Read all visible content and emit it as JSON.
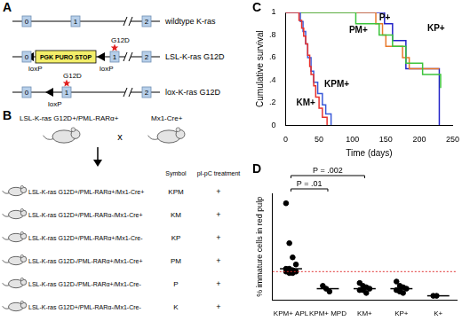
{
  "panels": {
    "A": {
      "label": "A",
      "rows": [
        {
          "name": "wildtype K-ras",
          "exons": [
            "0",
            "1",
            "2"
          ]
        },
        {
          "name": "LSL-K-ras G12D",
          "exons": [
            "0",
            "1",
            "2"
          ],
          "cassette": "PGK PURO STOP",
          "lox": [
            "loxP",
            "loxP"
          ],
          "mutation": "G12D"
        },
        {
          "name": "lox-K-ras G12D",
          "exons": [
            "0",
            "1",
            "2"
          ],
          "lox": [
            "loxP"
          ],
          "mutation": "G12D"
        }
      ]
    },
    "B": {
      "label": "B",
      "parents": [
        "LSL-K-ras G12D+/PML-RARα+",
        "Mx1-Cre+"
      ],
      "cross": "x",
      "headers": [
        "Symbol",
        "pI-pC treatment"
      ],
      "rows": [
        [
          "LSL-K-ras G12D+/PML-RARα+/Mx1-Cre+",
          "KPM",
          "+"
        ],
        [
          "LSL-K-ras G12D+/PML-RARα-/Mx1-Cre+",
          "KM",
          "+"
        ],
        [
          "LSL-K-ras G12D+/PML-RARα+/Mx1-Cre-",
          "KP",
          "+"
        ],
        [
          "LSL-K-ras G12D-/PML-RARα+/Mx1-Cre+",
          "PM",
          "+"
        ],
        [
          "LSL-K-ras G12D-/PML-RARα+/Mx1-Cre-",
          "P",
          "+"
        ],
        [
          "LSL-K-ras G12D+/PML-RARα-/Mx1-Cre-",
          "K",
          "+"
        ]
      ]
    }
  },
  "chart_data": [
    {
      "panel": "C",
      "type": "line",
      "line_style": "step",
      "xlabel": "Time (days)",
      "ylabel": "Cumulative survival",
      "xlim": [
        0,
        250
      ],
      "xticks": [
        0,
        50,
        100,
        150,
        200,
        250
      ],
      "ylim": [
        0,
        1
      ],
      "yticks": [
        0,
        {
          "value": 0.2,
          "label": ".2"
        },
        {
          "value": 0.4,
          "label": ".4"
        },
        {
          "value": 0.6,
          "label": ".6"
        },
        {
          "value": 0.8,
          "label": ".8"
        },
        1
      ],
      "grid": false,
      "series": [
        {
          "name": "KPM+",
          "color": "#e8302c",
          "x": [
            0,
            20,
            24,
            27,
            30,
            33,
            36,
            38,
            42,
            45,
            50,
            55,
            62
          ],
          "values": [
            1,
            0.93,
            0.86,
            0.79,
            0.72,
            0.62,
            0.52,
            0.45,
            0.35,
            0.25,
            0.15,
            0.07,
            0
          ]
        },
        {
          "name": "KM+",
          "color": "#3a5ad8",
          "x": [
            0,
            22,
            26,
            30,
            33,
            38,
            42,
            48,
            55,
            60,
            68
          ],
          "values": [
            1,
            0.92,
            0.83,
            0.72,
            0.6,
            0.48,
            0.38,
            0.28,
            0.18,
            0.1,
            0
          ]
        },
        {
          "name": "PM+",
          "color": "#3cc43c",
          "x": [
            0,
            105,
            140,
            160,
            180,
            205,
            232
          ],
          "values": [
            1,
            0.9,
            0.8,
            0.7,
            0.55,
            0.45,
            0.33
          ]
        },
        {
          "name": "P+",
          "color": "#e8782a",
          "x": [
            0,
            135,
            145,
            150,
            175,
            185,
            230
          ],
          "values": [
            1,
            0.9,
            0.8,
            0.7,
            0.6,
            0.5,
            0.5
          ]
        },
        {
          "name": "KP+",
          "color": "#2424c8",
          "x": [
            0,
            148,
            160,
            180,
            230
          ],
          "values": [
            1,
            0.9,
            0.75,
            0.5,
            0
          ]
        }
      ],
      "annotations": [
        {
          "text": "P+",
          "x": 140,
          "y": 0.95
        },
        {
          "text": "PM+",
          "x": 95,
          "y": 0.84
        },
        {
          "text": "KP+",
          "x": 212,
          "y": 0.86
        },
        {
          "text": "KM+",
          "x": 16,
          "y": 0.2
        },
        {
          "text": "KPM+",
          "x": 58,
          "y": 0.36
        }
      ]
    },
    {
      "panel": "D",
      "type": "scatter",
      "ylabel": "% immature cells in red pulp",
      "categories": [
        "KPM+ APL",
        "KPM+ MPD",
        "KM+",
        "KP+",
        "K+"
      ],
      "points": [
        [
          68,
          40,
          30,
          25,
          22,
          22,
          21,
          20,
          20,
          19,
          19
        ],
        [
          10,
          8,
          6
        ],
        [
          12,
          10,
          9,
          8,
          7,
          7,
          5
        ],
        [
          13,
          10,
          9,
          8,
          7,
          6,
          5
        ],
        [
          3,
          3
        ]
      ],
      "medians": [
        22,
        8,
        8,
        8,
        3
      ],
      "threshold": 20,
      "color": "#000000",
      "ylim": [
        0,
        75
      ],
      "tick_labels": "x",
      "grid": false,
      "comparisons": [
        {
          "from": "KPM+ APL",
          "to": "KPM+ MPD",
          "label": "P = .01"
        },
        {
          "from": "KPM+ APL",
          "to": "KM+",
          "label": "P = .002"
        }
      ]
    }
  ]
}
